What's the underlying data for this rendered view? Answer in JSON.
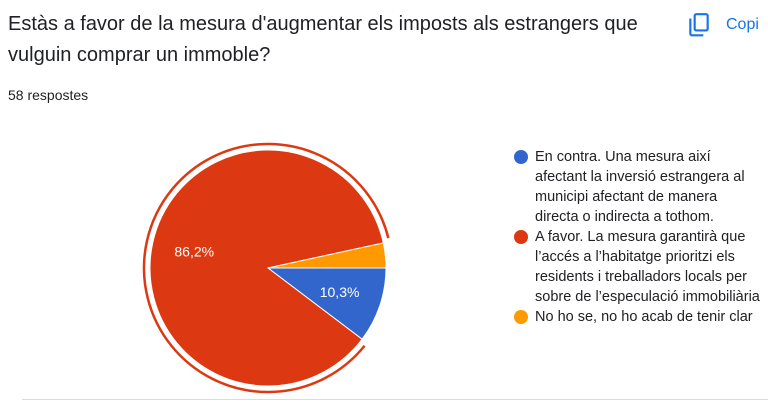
{
  "question": "Estàs a favor de la mesura d'augmentar els imposts als estrangers que vulguin comprar un immoble?",
  "response_count": "58 respostes",
  "copy_button": {
    "label": "Copi",
    "icon": "copy-icon"
  },
  "chart_data": {
    "type": "pie",
    "title": "Estàs a favor de la mesura d'augmentar els imposts als estrangers que vulguin comprar un immoble?",
    "total_responses": 58,
    "slices": [
      {
        "label": "En contra. Una mesura així afectant la inversió estrangera al municipi afectant de manera directa o indirecta a tothom.",
        "percent": 10.3,
        "percent_label": "10,3%",
        "color": "#3366cc"
      },
      {
        "label": "A favor. La mesura garantirà que l’accés a l’habitatge prioritzi els residents i treballadors locals per sobre de l’especulació immobiliària",
        "percent": 86.2,
        "percent_label": "86,2%",
        "color": "#dc3912"
      },
      {
        "label": "No ho se, no ho acab de tenir clar",
        "percent": 3.4,
        "percent_label": "",
        "color": "#ff9900"
      }
    ],
    "highlighted_slice": 1,
    "legend_position": "right"
  }
}
